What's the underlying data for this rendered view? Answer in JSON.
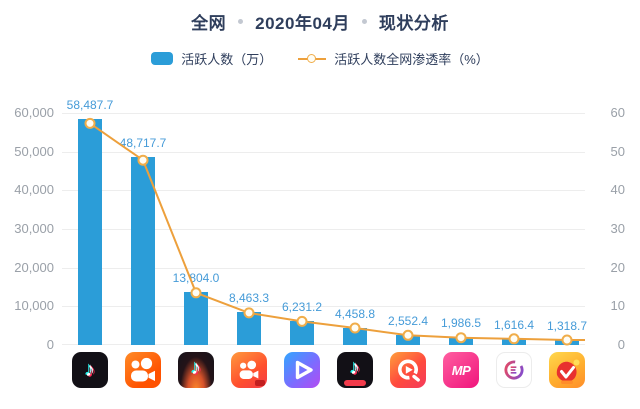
{
  "header": {
    "title_segments": [
      "全网",
      "2020年04月",
      "现状分析"
    ]
  },
  "legend": {
    "items": [
      {
        "label": "活跃人数（万）",
        "marker": "bar-swatch",
        "color": "#2b9dd8"
      },
      {
        "label": "活跃人数全网渗透率（%）",
        "marker": "line-swatch",
        "color": "#eda03c"
      }
    ]
  },
  "chart_data": {
    "type": "bar",
    "combo": "bar+line",
    "title": "全网 · 2020年04月 · 现状分析",
    "categories": [
      "douyin",
      "kuaishou",
      "douyin-huoshan",
      "kuaishou-jisu",
      "weishi",
      "douyin-jisu",
      "quanmin-video",
      "meipai",
      "video-app-9",
      "video-app-10"
    ],
    "series": [
      {
        "name": "活跃人数（万）",
        "chart": "bar",
        "axis": "left",
        "color": "#2b9dd8",
        "values": [
          58487.7,
          48717.7,
          13804.0,
          8463.3,
          6231.2,
          4458.8,
          2552.4,
          1986.5,
          1616.4,
          1318.7
        ],
        "labels": [
          "58,487.7",
          "48,717.7",
          "13,804.0",
          "8,463.3",
          "6,231.2",
          "4,458.8",
          "2,552.4",
          "1,986.5",
          "1,616.4",
          "1,318.7"
        ]
      },
      {
        "name": "活跃人数全网渗透率（%）",
        "chart": "line",
        "axis": "right",
        "color": "#eda03c",
        "values": [
          57.3,
          47.8,
          13.5,
          8.3,
          6.1,
          4.4,
          2.5,
          1.9,
          1.6,
          1.3
        ]
      }
    ],
    "left_axis": {
      "range": [
        0,
        60000
      ],
      "tick_labels": [
        "0",
        "10,000",
        "20,000",
        "30,000",
        "40,000",
        "50,000",
        "60,000"
      ]
    },
    "right_axis": {
      "range": [
        0,
        60
      ],
      "tick_labels": [
        "0",
        "10",
        "20",
        "30",
        "40",
        "50",
        "60"
      ]
    },
    "grid": true,
    "legend_position": "top"
  },
  "icons": [
    {
      "name": "douyin-icon"
    },
    {
      "name": "kuaishou-icon"
    },
    {
      "name": "douyin-huoshan-icon"
    },
    {
      "name": "kuaishou-jisu-icon"
    },
    {
      "name": "weishi-icon"
    },
    {
      "name": "douyin-jisu-icon"
    },
    {
      "name": "quanmin-video-icon"
    },
    {
      "name": "meipai-icon"
    },
    {
      "name": "video-app-9-icon"
    },
    {
      "name": "video-app-10-icon"
    }
  ],
  "colors": {
    "bar": "#2b9dd8",
    "line": "#eda03c",
    "marker_fill": "#fffdf4",
    "marker_stroke": "#f0ad4a",
    "title_text": "#2f3e5c",
    "axis_text": "#9aa0a8",
    "value_label": "#459bd8",
    "gridline": "#ededed",
    "dot_separator": "#c3c8d1"
  }
}
